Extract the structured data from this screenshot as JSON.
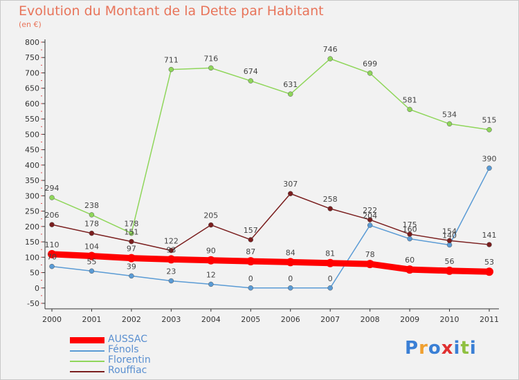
{
  "chart_data": {
    "type": "line",
    "title": "Evolution du Montant de la Dette par Habitant",
    "subtitle": "(en €)",
    "xlabel": "",
    "ylabel": "",
    "ylim": [
      -50,
      800
    ],
    "yticks": [
      -50,
      0,
      50,
      100,
      150,
      200,
      250,
      300,
      350,
      400,
      450,
      500,
      550,
      600,
      650,
      700,
      750,
      800
    ],
    "categories": [
      "2000",
      "2001",
      "2002",
      "2003",
      "2004",
      "2005",
      "2006",
      "2007",
      "2008",
      "2009",
      "2010",
      "2011"
    ],
    "grid": false,
    "legend_position": "bottom-left",
    "series": [
      {
        "name": "AUSSAC",
        "color": "#ff0000",
        "values": [
          110,
          104,
          97,
          93,
          90,
          87,
          84,
          81,
          78,
          60,
          56,
          53
        ],
        "labels": [
          "110",
          "104",
          "97",
          "93",
          "90",
          "87",
          "84",
          "81",
          "78",
          "60",
          "56",
          "53"
        ]
      },
      {
        "name": "Fénols",
        "color": "#5a9bd5",
        "values": [
          70,
          55,
          39,
          23,
          12,
          0,
          0,
          0,
          204,
          160,
          140,
          390
        ],
        "labels": [
          "70",
          "55",
          "39",
          "23",
          "12",
          "0",
          "0",
          "0",
          "204",
          "160",
          "140",
          "390"
        ]
      },
      {
        "name": "Florentin",
        "color": "#8fd65a",
        "values": [
          294,
          238,
          178,
          711,
          716,
          674,
          631,
          746,
          699,
          581,
          534,
          515
        ],
        "labels": [
          "294",
          "238",
          "178",
          "711",
          "716",
          "674",
          "631",
          "746",
          "699",
          "581",
          "534",
          "515"
        ]
      },
      {
        "name": "Rouffiac",
        "color": "#7a1e1e",
        "values": [
          206,
          178,
          151,
          122,
          205,
          157,
          307,
          258,
          222,
          175,
          154,
          141
        ],
        "labels": [
          "206",
          "178",
          "151",
          "122",
          "205",
          "157",
          "307",
          "258",
          "222",
          "175",
          "154",
          "141"
        ]
      }
    ]
  },
  "logo": {
    "letters": [
      "P",
      "r",
      "o",
      "x",
      "i",
      "t",
      "i"
    ],
    "colors": [
      "#3a7fd5",
      "#f0a030",
      "#3a7fd5",
      "#e03030",
      "#3a7fd5",
      "#8fc040",
      "#3a7fd5"
    ]
  }
}
